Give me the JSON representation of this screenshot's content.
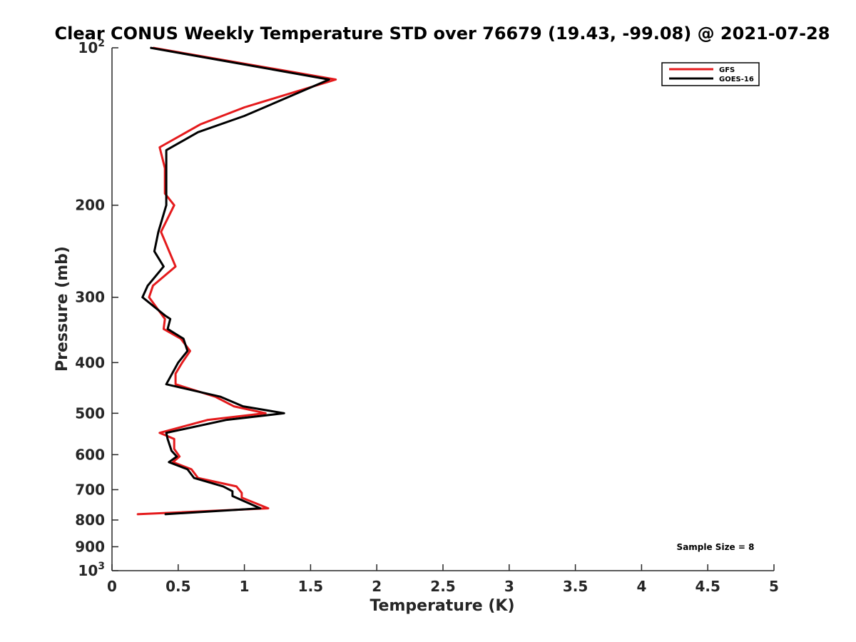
{
  "chart_data": {
    "type": "line",
    "title": "Clear CONUS Weekly Temperature STD over 76679 (19.43, -99.08) @ 2021-07-28",
    "xlabel": "Temperature (K)",
    "ylabel": "Pressure (mb)",
    "xlim": [
      0,
      5
    ],
    "ylim": [
      100,
      1000
    ],
    "y_scale": "log",
    "y_reversed": true,
    "grid": false,
    "legend_position": "top-right",
    "x_ticks": [
      "0",
      "0.5",
      "1",
      "1.5",
      "2",
      "2.5",
      "3",
      "3.5",
      "4",
      "4.5",
      "5"
    ],
    "y_ticks": [
      {
        "value": 100,
        "base": "10",
        "exp": "2"
      },
      {
        "value": 200,
        "label": "200"
      },
      {
        "value": 300,
        "label": "300"
      },
      {
        "value": 400,
        "label": "400"
      },
      {
        "value": 500,
        "label": "500"
      },
      {
        "value": 600,
        "label": "600"
      },
      {
        "value": 700,
        "label": "700"
      },
      {
        "value": 800,
        "label": "800"
      },
      {
        "value": 900,
        "label": "900"
      },
      {
        "value": 1000,
        "base": "10",
        "exp": "3"
      }
    ],
    "annotation": "Sample Size = 8",
    "series": [
      {
        "name": "GFS",
        "color": "#e41a1c",
        "points": [
          {
            "x": 0.31,
            "y": 100
          },
          {
            "x": 1.69,
            "y": 115
          },
          {
            "x": 1.0,
            "y": 130
          },
          {
            "x": 0.67,
            "y": 140
          },
          {
            "x": 0.36,
            "y": 155
          },
          {
            "x": 0.4,
            "y": 170
          },
          {
            "x": 0.4,
            "y": 190
          },
          {
            "x": 0.47,
            "y": 200
          },
          {
            "x": 0.37,
            "y": 225
          },
          {
            "x": 0.48,
            "y": 262
          },
          {
            "x": 0.31,
            "y": 285
          },
          {
            "x": 0.28,
            "y": 300
          },
          {
            "x": 0.4,
            "y": 330
          },
          {
            "x": 0.39,
            "y": 345
          },
          {
            "x": 0.52,
            "y": 360
          },
          {
            "x": 0.59,
            "y": 380
          },
          {
            "x": 0.53,
            "y": 400
          },
          {
            "x": 0.48,
            "y": 420
          },
          {
            "x": 0.48,
            "y": 440
          },
          {
            "x": 0.78,
            "y": 465
          },
          {
            "x": 0.92,
            "y": 485
          },
          {
            "x": 1.16,
            "y": 500
          },
          {
            "x": 0.72,
            "y": 515
          },
          {
            "x": 0.36,
            "y": 545
          },
          {
            "x": 0.47,
            "y": 560
          },
          {
            "x": 0.47,
            "y": 585
          },
          {
            "x": 0.51,
            "y": 605
          },
          {
            "x": 0.46,
            "y": 620
          },
          {
            "x": 0.6,
            "y": 640
          },
          {
            "x": 0.65,
            "y": 665
          },
          {
            "x": 0.94,
            "y": 690
          },
          {
            "x": 0.98,
            "y": 710
          },
          {
            "x": 0.98,
            "y": 725
          },
          {
            "x": 1.18,
            "y": 760
          },
          {
            "x": 0.19,
            "y": 780
          }
        ]
      },
      {
        "name": "GOES-16",
        "color": "#000000",
        "points": [
          {
            "x": 0.29,
            "y": 100
          },
          {
            "x": 1.64,
            "y": 115
          },
          {
            "x": 1.0,
            "y": 135
          },
          {
            "x": 0.65,
            "y": 145
          },
          {
            "x": 0.41,
            "y": 157
          },
          {
            "x": 0.41,
            "y": 170
          },
          {
            "x": 0.41,
            "y": 190
          },
          {
            "x": 0.41,
            "y": 200
          },
          {
            "x": 0.35,
            "y": 225
          },
          {
            "x": 0.32,
            "y": 245
          },
          {
            "x": 0.39,
            "y": 262
          },
          {
            "x": 0.27,
            "y": 285
          },
          {
            "x": 0.23,
            "y": 300
          },
          {
            "x": 0.4,
            "y": 325
          },
          {
            "x": 0.44,
            "y": 330
          },
          {
            "x": 0.42,
            "y": 345
          },
          {
            "x": 0.54,
            "y": 360
          },
          {
            "x": 0.57,
            "y": 380
          },
          {
            "x": 0.5,
            "y": 400
          },
          {
            "x": 0.41,
            "y": 440
          },
          {
            "x": 0.82,
            "y": 465
          },
          {
            "x": 0.99,
            "y": 485
          },
          {
            "x": 1.3,
            "y": 500
          },
          {
            "x": 0.86,
            "y": 515
          },
          {
            "x": 0.41,
            "y": 545
          },
          {
            "x": 0.42,
            "y": 560
          },
          {
            "x": 0.45,
            "y": 590
          },
          {
            "x": 0.49,
            "y": 605
          },
          {
            "x": 0.43,
            "y": 620
          },
          {
            "x": 0.57,
            "y": 640
          },
          {
            "x": 0.62,
            "y": 665
          },
          {
            "x": 0.84,
            "y": 690
          },
          {
            "x": 0.91,
            "y": 705
          },
          {
            "x": 0.91,
            "y": 720
          },
          {
            "x": 1.12,
            "y": 760
          },
          {
            "x": 0.4,
            "y": 780
          }
        ]
      }
    ]
  }
}
